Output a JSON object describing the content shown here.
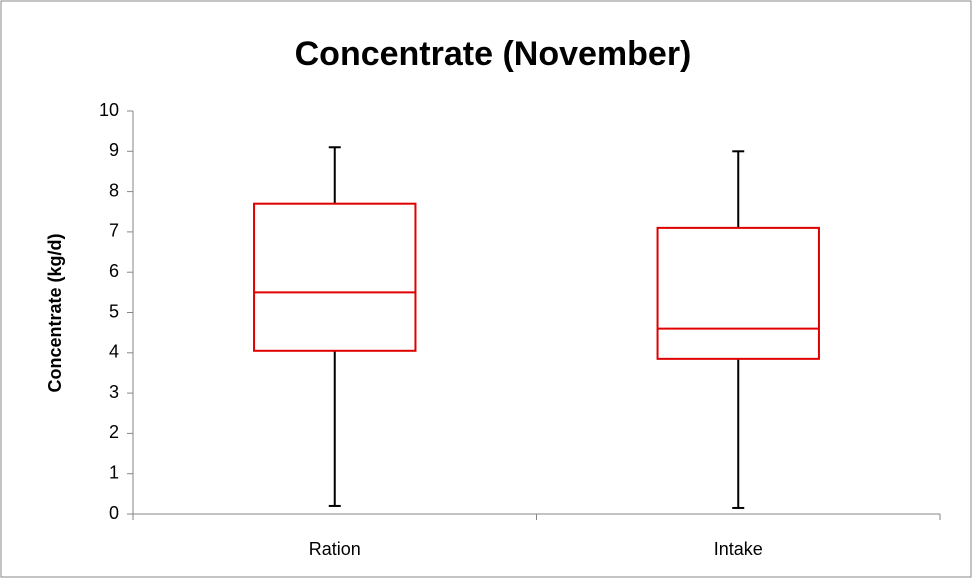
{
  "chart_data": {
    "type": "box",
    "title": "Concentrate (November)",
    "y_label": "Concentrate (kg/d)",
    "categories": [
      "Ration",
      "Intake"
    ],
    "min": [
      0.2,
      0.15
    ],
    "q1": [
      4.05,
      3.85
    ],
    "median": [
      5.5,
      4.6
    ],
    "q3": [
      7.7,
      7.1
    ],
    "max": [
      9.1,
      9.0
    ],
    "box_color": "#e00000",
    "whisker_color": "#000000",
    "ylim": [
      0,
      10
    ],
    "yticks": [
      0,
      1,
      2,
      3,
      4,
      5,
      6,
      7,
      8,
      9,
      10
    ]
  }
}
